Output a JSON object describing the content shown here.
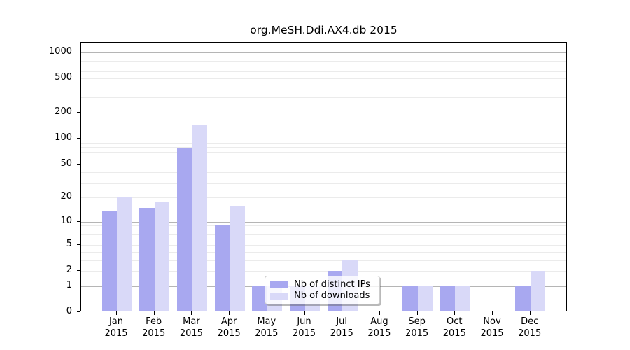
{
  "title": "org.MeSH.Ddi.AX4.db 2015",
  "colors": {
    "distinct_ips": "#a8a8f0",
    "downloads": "#d9d9f8",
    "major_gridline": "#b5b5b5",
    "minor_gridline": "#ebebeb",
    "axis": "#000000",
    "legend_border": "#cccccc"
  },
  "legend": {
    "items": [
      {
        "label": "Nb of distinct IPs",
        "color_key": "distinct_ips"
      },
      {
        "label": "Nb of downloads",
        "color_key": "downloads"
      }
    ],
    "position": "lower center"
  },
  "chart_data": {
    "type": "bar",
    "title": "org.MeSH.Ddi.AX4.db 2015",
    "year": "2015",
    "months": [
      "Jan",
      "Feb",
      "Mar",
      "Apr",
      "May",
      "Jun",
      "Jul",
      "Aug",
      "Sep",
      "Oct",
      "Nov",
      "Dec"
    ],
    "categories": [
      "Jan 2015",
      "Feb 2015",
      "Mar 2015",
      "Apr 2015",
      "May 2015",
      "Jun 2015",
      "Jul 2015",
      "Aug 2015",
      "Sep 2015",
      "Oct 2015",
      "Nov 2015",
      "Dec 2015"
    ],
    "series": [
      {
        "name": "Nb of distinct IPs",
        "color_key": "distinct_ips",
        "values": [
          14,
          15,
          78,
          9,
          1,
          1,
          2,
          0,
          1,
          1,
          0,
          1
        ]
      },
      {
        "name": "Nb of downloads",
        "color_key": "downloads",
        "values": [
          20,
          18,
          143,
          16,
          1,
          1,
          3,
          0,
          1,
          1,
          0,
          2
        ]
      }
    ],
    "y_ticks": [
      0,
      1,
      2,
      5,
      10,
      20,
      50,
      100,
      200,
      500,
      1000
    ],
    "y_scale": "log10(1+y)",
    "ylim": [
      0,
      1300
    ],
    "xlabel": "",
    "ylabel": "",
    "grid": true,
    "legend_position": "lower center"
  }
}
